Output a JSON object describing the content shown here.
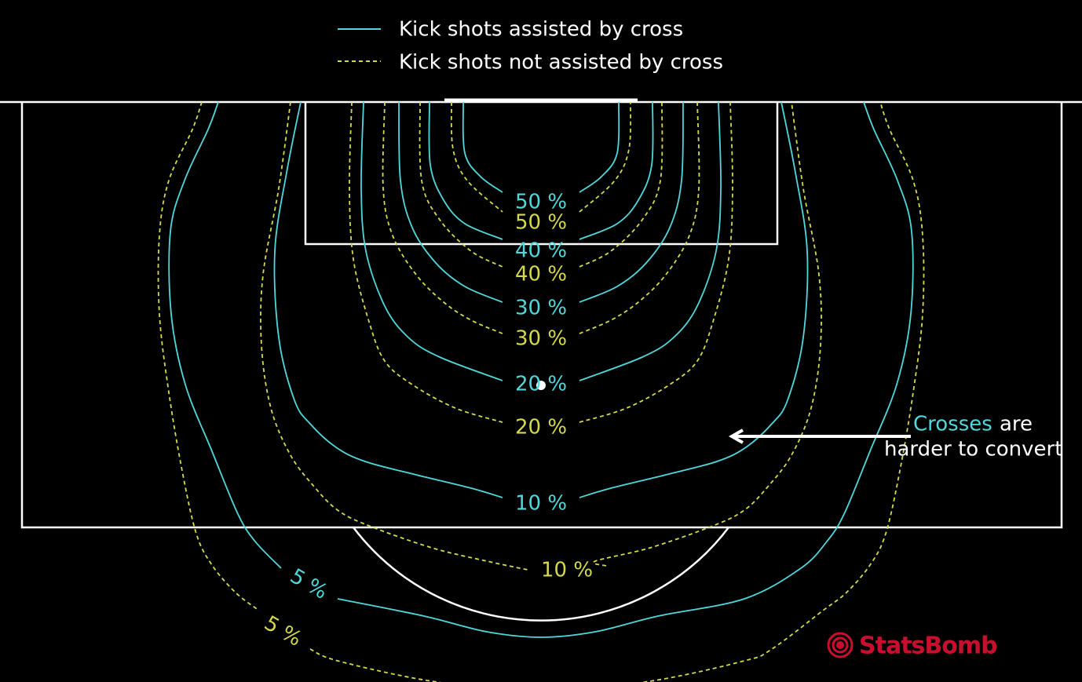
{
  "chart_data": {
    "type": "contour",
    "series": [
      {
        "name": "Kick shots assisted by cross",
        "color": "#4fd8dc",
        "line_style": "solid",
        "levels": [
          5,
          10,
          20,
          30,
          40,
          50
        ],
        "value_labels": [
          "5 %",
          "10 %",
          "20 %",
          "30 %",
          "40 %",
          "50 %"
        ]
      },
      {
        "name": "Kick shots not assisted by cross",
        "color": "#d6d84c",
        "line_style": "dashed",
        "levels": [
          5,
          10,
          20,
          30,
          40,
          50
        ],
        "value_labels": [
          "5 %",
          "10 %",
          "20 %",
          "30 %",
          "40 %",
          "50 %"
        ]
      }
    ],
    "annotation": {
      "highlight": "Crosses",
      "text_1": "are",
      "text_2": "harder to convert"
    },
    "logo": "StatsBomb"
  }
}
